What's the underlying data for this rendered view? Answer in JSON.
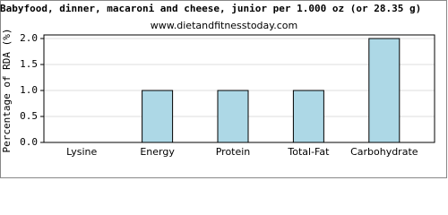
{
  "chart_data": {
    "type": "bar",
    "title": "Babyfood, dinner, macaroni and cheese, junior per 1.000 oz (or 28.35 g)",
    "subtitle": "www.dietandfitnesstoday.com",
    "y_label": "Percentage of RDA (%)",
    "categories": [
      "Lysine",
      "Energy",
      "Protein",
      "Total-Fat",
      "Carbohydrate"
    ],
    "values": [
      0,
      1,
      1,
      1,
      2
    ],
    "color": "#add8e6",
    "ylim": [
      0,
      2
    ],
    "yticks": [
      {
        "value": 0,
        "label": "0.0"
      },
      0.5,
      {
        "value": 1,
        "label": "1.0"
      },
      1.5,
      {
        "value": 2,
        "label": "2.0"
      }
    ],
    "grid": true
  }
}
